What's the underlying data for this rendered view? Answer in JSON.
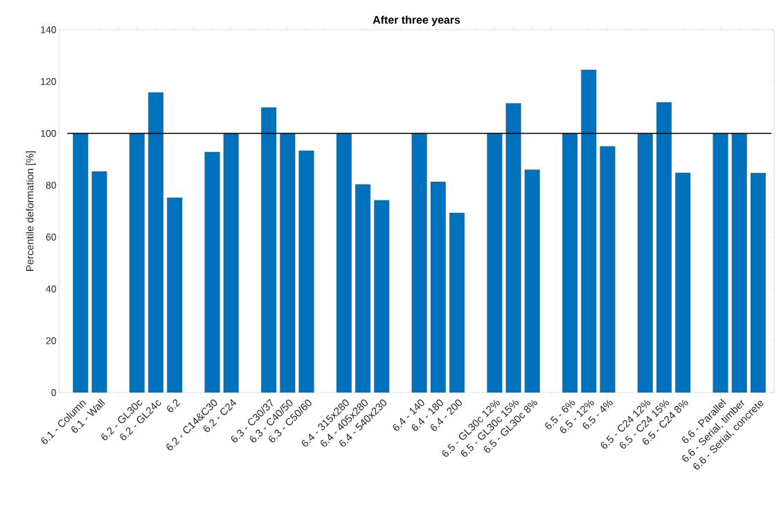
{
  "chart_data": {
    "type": "bar",
    "title": "After three years",
    "ylabel": "Percentile deformation [%]",
    "categories": [
      "6.1 - Column",
      "6.1 - Wall",
      null,
      "6.2 - GL30c",
      "6.2 - GL24c",
      "6.2",
      null,
      "6.2 - C14&C30",
      "6.2 - C24",
      null,
      "6.3 - C30/37",
      "6.3 - C40/50",
      "6.3 - C50/60",
      null,
      "6.4 - 315x280",
      "6.4 - 405x280",
      "6.4 - 540x230",
      null,
      "6.4 - 140",
      "6.4 - 180",
      "6.4 - 200",
      null,
      "6.5 - GL30c 12%",
      "6.5 - GL30c 15%",
      "6.5 - GL30c 8%",
      null,
      "6.5 - 6%",
      "6.5 - 12%",
      "6.5 - 4%",
      null,
      "6.5 - C24 12%",
      "6.5 - C24 15%",
      "6.5 - C24 8%",
      null,
      "6.6 - Parallel",
      "6.6 - Serial, timber",
      "6.6 - Serial, concrete"
    ],
    "values": [
      100,
      85.3,
      null,
      100,
      115.8,
      75.2,
      null,
      92.8,
      100,
      null,
      110,
      100,
      93.3,
      null,
      100,
      80.3,
      74.2,
      null,
      100,
      81.3,
      69.3,
      null,
      100,
      111.6,
      86,
      null,
      100,
      124.5,
      95,
      null,
      100,
      112,
      84.8,
      null,
      100,
      100,
      84.7
    ],
    "color": "#0072bd",
    "ylim": [
      0,
      140
    ],
    "yticks": [
      0,
      20,
      40,
      60,
      80,
      100,
      120,
      140
    ],
    "ref_lines": [
      {
        "axis": "y",
        "value": 100,
        "color": "#000000"
      }
    ],
    "grid": false
  }
}
